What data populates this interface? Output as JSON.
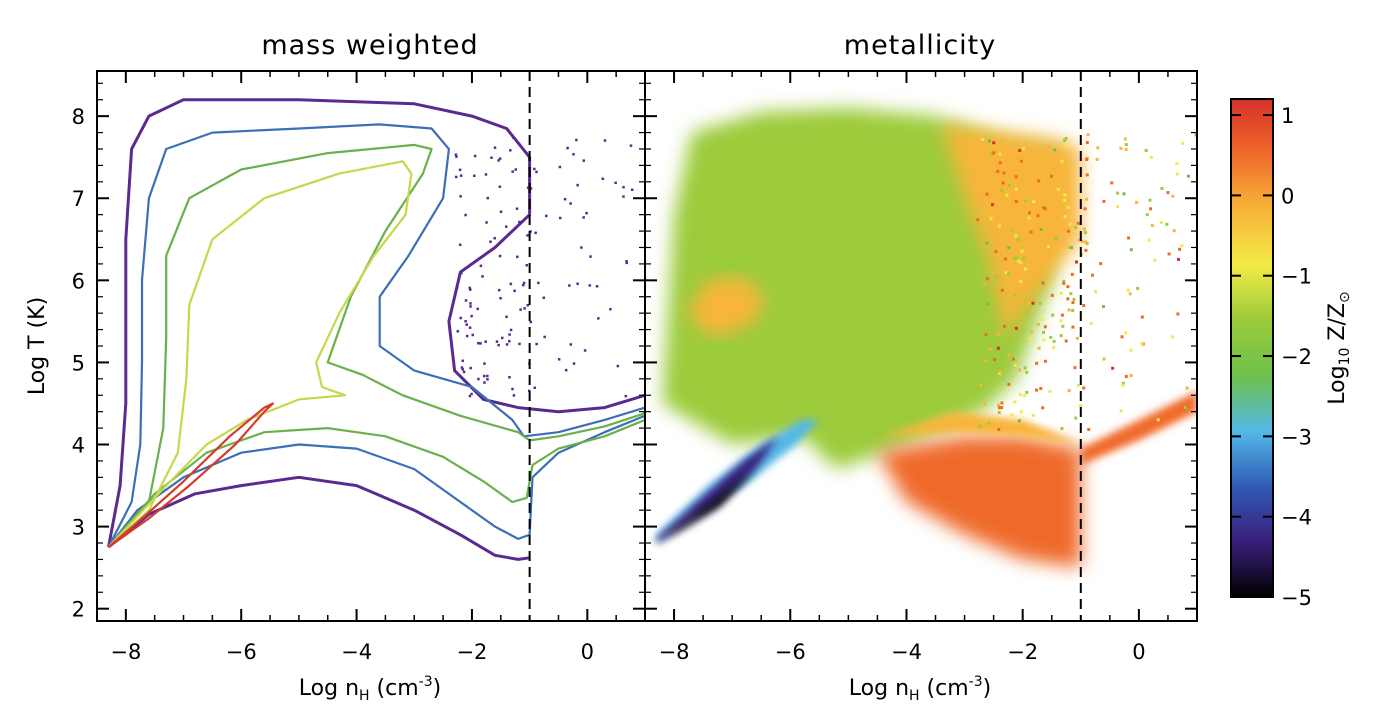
{
  "chart_data": [
    {
      "type": "contour",
      "title": "mass weighted",
      "xlabel": {
        "main": "Log n",
        "sub": "H",
        "tail": " (cm",
        "sup": "-3",
        "end": ")"
      },
      "ylabel": "Log T (K)",
      "xlim": [
        -8.5,
        1
      ],
      "ylim": [
        1.85,
        8.55
      ],
      "xticks": [
        -8,
        -6,
        -4,
        -2,
        0
      ],
      "xtick_labels": [
        "−8",
        "−6",
        "−4",
        "−2",
        "0"
      ],
      "yticks": [
        2,
        3,
        4,
        5,
        6,
        7,
        8
      ],
      "ytick_labels": [
        "2",
        "3",
        "4",
        "5",
        "6",
        "7",
        "8"
      ],
      "vline": -1,
      "contours": [
        {
          "level": "outermost",
          "color": "#5b2a91",
          "points": [
            [
              -8.3,
              2.75
            ],
            [
              -8.1,
              3.5
            ],
            [
              -8.0,
              4.5
            ],
            [
              -8.0,
              6.5
            ],
            [
              -7.9,
              7.6
            ],
            [
              -7.6,
              8.0
            ],
            [
              -7.0,
              8.2
            ],
            [
              -5.0,
              8.2
            ],
            [
              -3.0,
              8.15
            ],
            [
              -2.0,
              8.0
            ],
            [
              -1.4,
              7.85
            ],
            [
              -1.0,
              7.5
            ],
            [
              -1.0,
              6.8
            ],
            [
              -1.6,
              6.4
            ],
            [
              -2.2,
              6.1
            ],
            [
              -2.4,
              5.5
            ],
            [
              -2.3,
              4.9
            ],
            [
              -1.8,
              4.55
            ],
            [
              -1.2,
              4.45
            ],
            [
              -0.5,
              4.4
            ],
            [
              0.3,
              4.45
            ],
            [
              1.0,
              4.6
            ]
          ]
        },
        {
          "level": "outermost-lower",
          "color": "#5b2a91",
          "points": [
            [
              -8.3,
              2.75
            ],
            [
              -7.6,
              3.15
            ],
            [
              -6.8,
              3.4
            ],
            [
              -6.0,
              3.5
            ],
            [
              -5.0,
              3.6
            ],
            [
              -4.0,
              3.5
            ],
            [
              -3.0,
              3.2
            ],
            [
              -2.2,
              2.9
            ],
            [
              -1.6,
              2.65
            ],
            [
              -1.2,
              2.6
            ],
            [
              -1.0,
              2.62
            ]
          ]
        },
        {
          "level": "second",
          "color": "#3b6fb6",
          "points": [
            [
              -8.3,
              2.75
            ],
            [
              -7.9,
              3.3
            ],
            [
              -7.75,
              4.0
            ],
            [
              -7.72,
              5.0
            ],
            [
              -7.72,
              6.0
            ],
            [
              -7.6,
              7.0
            ],
            [
              -7.3,
              7.6
            ],
            [
              -6.5,
              7.8
            ],
            [
              -5.0,
              7.85
            ],
            [
              -3.6,
              7.9
            ],
            [
              -2.7,
              7.85
            ],
            [
              -2.4,
              7.6
            ],
            [
              -2.5,
              7.0
            ],
            [
              -3.1,
              6.3
            ],
            [
              -3.6,
              5.8
            ],
            [
              -3.6,
              5.2
            ],
            [
              -3.0,
              4.9
            ],
            [
              -2.0,
              4.7
            ],
            [
              -1.3,
              4.3
            ],
            [
              -1.1,
              4.1
            ],
            [
              -0.5,
              4.15
            ],
            [
              0.3,
              4.3
            ],
            [
              1.0,
              4.45
            ]
          ]
        },
        {
          "level": "second-lower",
          "color": "#3b6fb6",
          "points": [
            [
              -8.3,
              2.75
            ],
            [
              -7.8,
              3.2
            ],
            [
              -7.0,
              3.6
            ],
            [
              -6.0,
              3.9
            ],
            [
              -5.0,
              4.0
            ],
            [
              -4.0,
              3.95
            ],
            [
              -3.0,
              3.7
            ],
            [
              -2.2,
              3.3
            ],
            [
              -1.6,
              3.0
            ],
            [
              -1.2,
              2.85
            ],
            [
              -1.0,
              2.9
            ],
            [
              -0.95,
              3.6
            ],
            [
              -0.5,
              3.9
            ],
            [
              0.3,
              4.15
            ],
            [
              1.0,
              4.35
            ]
          ]
        },
        {
          "level": "third",
          "color": "#6ab04c",
          "points": [
            [
              -8.3,
              2.75
            ],
            [
              -7.6,
              3.3
            ],
            [
              -7.35,
              4.2
            ],
            [
              -7.3,
              5.3
            ],
            [
              -7.3,
              6.3
            ],
            [
              -6.9,
              7.0
            ],
            [
              -6.0,
              7.35
            ],
            [
              -4.5,
              7.55
            ],
            [
              -3.0,
              7.65
            ],
            [
              -2.7,
              7.6
            ],
            [
              -2.85,
              7.3
            ],
            [
              -3.5,
              6.6
            ],
            [
              -4.1,
              5.8
            ],
            [
              -4.5,
              5.0
            ],
            [
              -3.9,
              4.85
            ],
            [
              -3.2,
              4.6
            ],
            [
              -2.2,
              4.35
            ],
            [
              -1.2,
              4.15
            ],
            [
              -1.0,
              4.05
            ],
            [
              -0.5,
              4.1
            ],
            [
              0.3,
              4.22
            ],
            [
              1.0,
              4.38
            ]
          ]
        },
        {
          "level": "third-lower",
          "color": "#6ab04c",
          "points": [
            [
              -8.3,
              2.75
            ],
            [
              -7.5,
              3.4
            ],
            [
              -6.6,
              3.9
            ],
            [
              -5.6,
              4.15
            ],
            [
              -4.5,
              4.2
            ],
            [
              -3.5,
              4.1
            ],
            [
              -2.5,
              3.85
            ],
            [
              -1.8,
              3.55
            ],
            [
              -1.3,
              3.3
            ],
            [
              -1.05,
              3.35
            ],
            [
              -0.95,
              3.75
            ],
            [
              -0.5,
              3.95
            ],
            [
              0.3,
              4.1
            ],
            [
              1.0,
              4.3
            ]
          ]
        },
        {
          "level": "fourth",
          "color": "#c6d84a",
          "points": [
            [
              -8.3,
              2.75
            ],
            [
              -7.6,
              3.2
            ],
            [
              -7.1,
              3.9
            ],
            [
              -6.95,
              4.8
            ],
            [
              -6.9,
              5.7
            ],
            [
              -6.5,
              6.5
            ],
            [
              -5.6,
              7.0
            ],
            [
              -4.3,
              7.3
            ],
            [
              -3.2,
              7.45
            ],
            [
              -3.05,
              7.3
            ],
            [
              -3.15,
              6.8
            ],
            [
              -3.7,
              6.3
            ],
            [
              -4.3,
              5.6
            ],
            [
              -4.7,
              5.0
            ],
            [
              -4.6,
              4.7
            ],
            [
              -4.2,
              4.6
            ],
            [
              -5.0,
              4.55
            ],
            [
              -5.9,
              4.3
            ],
            [
              -6.6,
              4.0
            ],
            [
              -7.3,
              3.5
            ],
            [
              -7.9,
              3.05
            ],
            [
              -8.3,
              2.75
            ]
          ]
        },
        {
          "level": "innermost",
          "color": "#d63a2a",
          "points": [
            [
              -8.3,
              2.75
            ],
            [
              -7.6,
              3.1
            ],
            [
              -6.9,
              3.5
            ],
            [
              -6.1,
              4.0
            ],
            [
              -5.6,
              4.4
            ],
            [
              -5.45,
              4.5
            ],
            [
              -5.6,
              4.45
            ],
            [
              -6.2,
              4.1
            ],
            [
              -7.0,
              3.55
            ],
            [
              -7.8,
              3.05
            ],
            [
              -8.3,
              2.75
            ]
          ]
        }
      ]
    },
    {
      "type": "heatmap",
      "title": "metallicity",
      "xlabel": {
        "main": "Log n",
        "sub": "H",
        "tail": " (cm",
        "sup": "-3",
        "end": ")"
      },
      "xlim": [
        -8.5,
        1
      ],
      "ylim": [
        1.85,
        8.55
      ],
      "xticks": [
        -8,
        -6,
        -4,
        -2,
        0
      ],
      "xtick_labels": [
        "−8",
        "−6",
        "−4",
        "−2",
        "0"
      ],
      "vline": -1,
      "colorbar": {
        "label_main": "Log",
        "label_sub": "10",
        "label_tail": " Z/Z",
        "label_sunsub": "⊙",
        "range": [
          -5,
          1.2
        ],
        "ticks": [
          1,
          0,
          -1,
          -2,
          -3,
          -4,
          -5
        ],
        "tick_labels": [
          "1",
          "0",
          "−1",
          "−2",
          "−3",
          "−4",
          "−5"
        ],
        "colors": [
          "#000000",
          "#3a1f7a",
          "#2f5bb5",
          "#54b8e8",
          "#6cc04a",
          "#9ccb3b",
          "#f2ea45",
          "#f7b53a",
          "#ef6a2a",
          "#d6302a"
        ]
      },
      "regions": [
        {
          "name": "bulk-green",
          "value": -1.5,
          "points": [
            [
              -8.2,
              4.5
            ],
            [
              -8.0,
              6.8
            ],
            [
              -7.7,
              7.8
            ],
            [
              -6.5,
              8.05
            ],
            [
              -5.0,
              8.1
            ],
            [
              -3.5,
              8.0
            ],
            [
              -2.3,
              7.7
            ],
            [
              -1.4,
              7.6
            ],
            [
              -1.5,
              6.0
            ],
            [
              -2.1,
              4.8
            ],
            [
              -2.7,
              4.4
            ],
            [
              -4.0,
              4.0
            ],
            [
              -5.2,
              3.7
            ],
            [
              -5.8,
              4.1
            ],
            [
              -7.0,
              4.0
            ]
          ]
        },
        {
          "name": "yellow-upper-right",
          "value": -0.3,
          "points": [
            [
              -3.4,
              7.9
            ],
            [
              -2.3,
              7.8
            ],
            [
              -1.3,
              7.7
            ],
            [
              -1.0,
              7.6
            ],
            [
              -1.0,
              6.5
            ],
            [
              -1.8,
              5.8
            ],
            [
              -2.3,
              5.3
            ],
            [
              -2.6,
              6.3
            ],
            [
              -3.0,
              7.0
            ]
          ]
        },
        {
          "name": "orange-blob",
          "value": -0.4,
          "points": [
            [
              -7.8,
              5.6
            ],
            [
              -7.4,
              6.0
            ],
            [
              -6.8,
              6.05
            ],
            [
              -6.4,
              5.75
            ],
            [
              -6.7,
              5.45
            ],
            [
              -7.3,
              5.3
            ]
          ]
        },
        {
          "name": "red-lower-right",
          "value": 0.7,
          "points": [
            [
              -4.5,
              3.9
            ],
            [
              -3.0,
              4.1
            ],
            [
              -2.0,
              4.1
            ],
            [
              -1.0,
              3.95
            ],
            [
              -1.0,
              2.5
            ],
            [
              -2.0,
              2.6
            ],
            [
              -3.0,
              2.9
            ],
            [
              -4.0,
              3.3
            ]
          ]
        },
        {
          "name": "yellow-lower-band",
          "value": -0.2,
          "points": [
            [
              -4.4,
              4.1
            ],
            [
              -3.2,
              4.4
            ],
            [
              -2.0,
              4.3
            ],
            [
              -1.0,
              4.0
            ],
            [
              -2.0,
              4.1
            ],
            [
              -3.2,
              4.15
            ]
          ]
        },
        {
          "name": "red-tail",
          "value": 0.8,
          "points": [
            [
              -1.0,
              3.75
            ],
            [
              0.0,
              4.05
            ],
            [
              1.0,
              4.4
            ],
            [
              1.0,
              4.65
            ],
            [
              0.0,
              4.3
            ],
            [
              -1.0,
              3.95
            ]
          ]
        },
        {
          "name": "blue-wedge",
          "value": -3.0,
          "points": [
            [
              -8.3,
              2.9
            ],
            [
              -7.4,
              3.5
            ],
            [
              -6.5,
              4.0
            ],
            [
              -5.8,
              4.3
            ],
            [
              -5.5,
              4.3
            ],
            [
              -5.9,
              4.0
            ],
            [
              -6.8,
              3.5
            ],
            [
              -7.8,
              3.1
            ],
            [
              -8.3,
              2.8
            ]
          ]
        },
        {
          "name": "purple-wedge",
          "value": -4.0,
          "points": [
            [
              -8.3,
              2.85
            ],
            [
              -7.6,
              3.3
            ],
            [
              -6.8,
              3.8
            ],
            [
              -6.2,
              4.1
            ],
            [
              -6.6,
              3.7
            ],
            [
              -7.4,
              3.2
            ],
            [
              -8.3,
              2.8
            ]
          ]
        },
        {
          "name": "black-wedge",
          "value": -5.0,
          "points": [
            [
              -8.3,
              2.8
            ],
            [
              -7.7,
              3.1
            ],
            [
              -7.0,
              3.5
            ],
            [
              -6.6,
              3.7
            ],
            [
              -7.2,
              3.25
            ],
            [
              -7.9,
              2.95
            ],
            [
              -8.3,
              2.8
            ]
          ]
        }
      ]
    }
  ]
}
